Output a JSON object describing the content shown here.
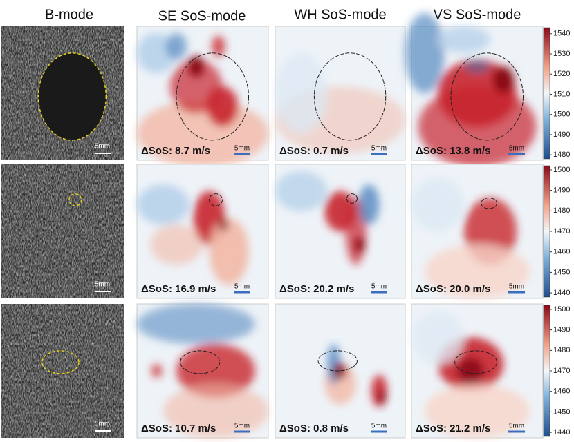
{
  "columns": [
    "B-mode",
    "SE SoS-mode",
    "WH SoS-mode",
    "VS SoS-mode"
  ],
  "scale_bar": "5mm",
  "rows": [
    {
      "delta_sos": [
        "ΔSoS: 8.7 m/s",
        "ΔSoS: 0.7 m/s",
        "ΔSoS: 13.8 m/s"
      ],
      "colorbar": {
        "lim": [
          1478,
          1543
        ],
        "ticks": [
          1480,
          1490,
          1500,
          1510,
          1520,
          1530,
          1540
        ]
      }
    },
    {
      "delta_sos": [
        "ΔSoS: 16.9 m/s",
        "ΔSoS: 20.2 m/s",
        "ΔSoS: 20.0 m/s"
      ],
      "colorbar": {
        "lim": [
          1438,
          1502
        ],
        "ticks": [
          1440,
          1450,
          1460,
          1470,
          1480,
          1490,
          1500
        ]
      }
    },
    {
      "delta_sos": [
        "ΔSoS: 10.7 m/s",
        "ΔSoS: 0.8 m/s",
        "ΔSoS: 21.2 m/s"
      ],
      "colorbar": {
        "lim": [
          1438,
          1502
        ],
        "ticks": [
          1440,
          1450,
          1460,
          1470,
          1480,
          1490,
          1500
        ]
      }
    }
  ]
}
